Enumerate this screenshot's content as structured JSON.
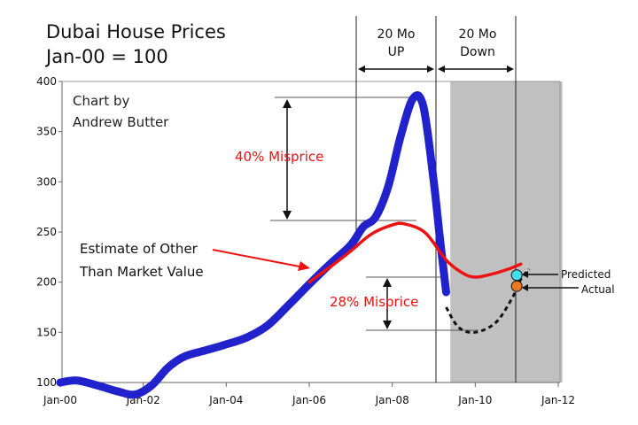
{
  "chart_data": {
    "type": "line",
    "title_line1": "Dubai House Prices",
    "title_line2": "Jan-00 = 100",
    "credit_line1": "Chart by",
    "credit_line2": "Andrew Butter",
    "y_ticks": [
      100,
      150,
      200,
      250,
      300,
      350,
      400
    ],
    "ylim": [
      100,
      400
    ],
    "x_ticks": [
      "Jan-00",
      "Jan-02",
      "Jan-04",
      "Jan-06",
      "Jan-08",
      "Jan-10",
      "Jan-12"
    ],
    "xlim": [
      2000,
      2012
    ],
    "series": [
      {
        "key": "price",
        "color": "#2222cc",
        "points": [
          [
            2000.0,
            100
          ],
          [
            2000.4,
            102
          ],
          [
            2000.9,
            97
          ],
          [
            2001.4,
            91
          ],
          [
            2001.8,
            88
          ],
          [
            2002.2,
            97
          ],
          [
            2002.6,
            115
          ],
          [
            2003.0,
            126
          ],
          [
            2003.5,
            132
          ],
          [
            2004.0,
            138
          ],
          [
            2004.5,
            145
          ],
          [
            2005.0,
            157
          ],
          [
            2005.5,
            177
          ],
          [
            2006.0,
            198
          ],
          [
            2006.5,
            218
          ],
          [
            2007.0,
            237
          ],
          [
            2007.3,
            255
          ],
          [
            2007.6,
            265
          ],
          [
            2007.9,
            295
          ],
          [
            2008.2,
            345
          ],
          [
            2008.5,
            383
          ],
          [
            2008.75,
            375
          ],
          [
            2009.0,
            300
          ],
          [
            2009.15,
            243
          ],
          [
            2009.3,
            190
          ]
        ]
      },
      {
        "key": "other_than_market_value",
        "color": "#ee1111",
        "points": [
          [
            2006.0,
            200
          ],
          [
            2006.5,
            215
          ],
          [
            2007.0,
            231
          ],
          [
            2007.5,
            248
          ],
          [
            2008.0,
            257
          ],
          [
            2008.3,
            258
          ],
          [
            2008.8,
            249
          ],
          [
            2009.3,
            222
          ],
          [
            2009.7,
            209
          ],
          [
            2010.0,
            205
          ],
          [
            2010.4,
            208
          ],
          [
            2010.8,
            213
          ],
          [
            2011.1,
            218
          ]
        ]
      },
      {
        "key": "projection",
        "color": "#111111",
        "points": [
          [
            2009.3,
            175
          ],
          [
            2009.6,
            155
          ],
          [
            2010.0,
            150
          ],
          [
            2010.5,
            160
          ],
          [
            2010.9,
            185
          ],
          [
            2011.1,
            203
          ],
          [
            2011.3,
            213
          ]
        ]
      }
    ],
    "shaded_region": [
      2009.4,
      2012.1
    ],
    "annotations": {
      "misprice_40": "40% Misprice",
      "misprice_28": "28% Misprice",
      "estimate_line1": "Estimate of Other",
      "estimate_line2": "Than Market Value",
      "up_line1": "20 Mo",
      "up_line2": "UP",
      "down_line1": "20 Mo",
      "down_line2": "Down",
      "predicted": "Predicted",
      "actual": "Actual"
    },
    "markers": [
      {
        "label": "Predicted",
        "x": 2011.0,
        "y": 207,
        "color": "#44ddee"
      },
      {
        "label": "Actual",
        "x": 2011.0,
        "y": 196,
        "color": "#ee7722"
      }
    ],
    "grid": false
  }
}
